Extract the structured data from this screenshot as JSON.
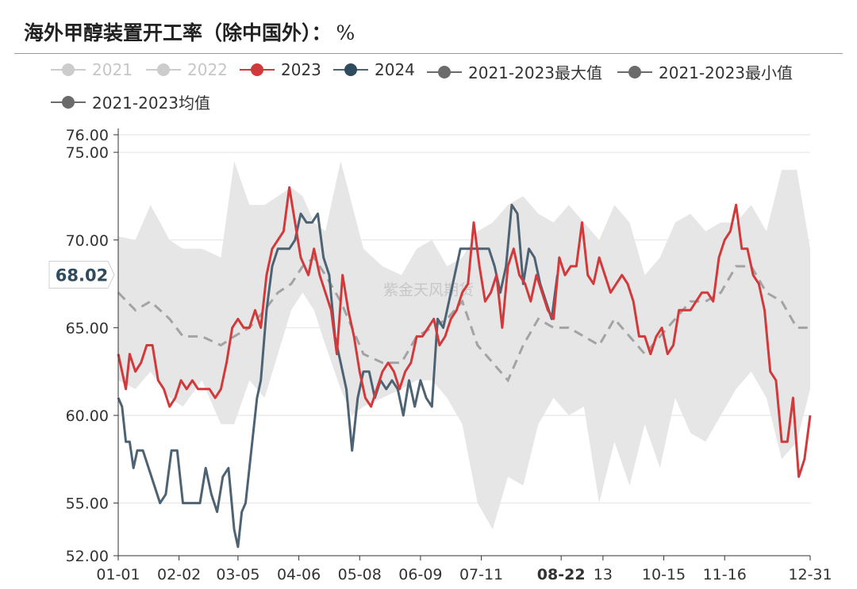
{
  "title": "海外甲醇装置开工率（除中国外）：",
  "title_unit": "%",
  "watermark": "紫金天风期货",
  "colors": {
    "band": "#e6e6e6",
    "mean": "#a3a3a3",
    "s2023": "#d2393b",
    "s2024": "#4d6373",
    "legend_off": "#cccccc",
    "legend_band": "#6b6b6b",
    "grid": "#e2e2e2",
    "axis": "#333333"
  },
  "legend": [
    {
      "label": "2021",
      "state": "off"
    },
    {
      "label": "2022",
      "state": "off"
    },
    {
      "label": "2023",
      "state": "on"
    },
    {
      "label": "2024",
      "state": "on"
    },
    {
      "label": "2021-2023最大值",
      "state": "on"
    },
    {
      "label": "2021-2023最小值",
      "state": "on"
    },
    {
      "label": "2021-2023均值",
      "state": "on"
    }
  ],
  "chart_data": {
    "type": "line",
    "x_unit": "day-of-year (MM-DD)",
    "x_ticks": [
      "01-01",
      "02-02",
      "03-05",
      "04-06",
      "05-08",
      "06-09",
      "07-11",
      "08-22",
      "13",
      "10-15",
      "11-16",
      "12-31"
    ],
    "x_tick_days": [
      1,
      33,
      64,
      96,
      128,
      160,
      192,
      234,
      256,
      288,
      320,
      365
    ],
    "highlight_x": "08-22",
    "y_ticks": [
      52,
      55,
      60,
      65,
      70,
      75,
      76
    ],
    "ylim": [
      52,
      76
    ],
    "pointer_value": "68.02",
    "pointer_y": 68.02,
    "grid": true,
    "series": [
      {
        "name": "2021-2023最大值",
        "role": "band-upper",
        "x": [
          1,
          10,
          18,
          28,
          35,
          45,
          55,
          62,
          70,
          78,
          85,
          92,
          98,
          104,
          110,
          118,
          124,
          130,
          140,
          150,
          158,
          166,
          174,
          182,
          190,
          198,
          206,
          214,
          222,
          230,
          238,
          246,
          254,
          262,
          270,
          278,
          286,
          294,
          302,
          310,
          318,
          326,
          334,
          342,
          350,
          358,
          365
        ],
        "y": [
          70.2,
          70.0,
          72.0,
          70.0,
          69.5,
          69.5,
          69.0,
          74.5,
          72.0,
          72.0,
          72.5,
          73.0,
          72.5,
          71.0,
          70.5,
          74.5,
          72.0,
          69.5,
          68.5,
          68.0,
          69.5,
          70.0,
          68.5,
          69.0,
          70.5,
          71.0,
          72.0,
          72.5,
          71.5,
          71.0,
          72.0,
          71.0,
          70.0,
          72.0,
          71.0,
          68.0,
          69.0,
          71.0,
          71.5,
          70.5,
          71.0,
          71.0,
          72.0,
          70.5,
          74.0,
          74.0,
          69.5
        ]
      },
      {
        "name": "2021-2023最小值",
        "role": "band-lower",
        "x": [
          1,
          10,
          18,
          28,
          35,
          45,
          55,
          62,
          70,
          78,
          85,
          92,
          98,
          104,
          110,
          118,
          124,
          130,
          140,
          150,
          158,
          166,
          174,
          182,
          190,
          198,
          206,
          214,
          222,
          230,
          238,
          246,
          254,
          262,
          270,
          278,
          286,
          294,
          302,
          310,
          318,
          326,
          334,
          342,
          350,
          358,
          365
        ],
        "y": [
          62.0,
          61.5,
          62.5,
          61.0,
          60.5,
          62.0,
          59.5,
          59.5,
          62.0,
          61.0,
          63.5,
          66.0,
          67.0,
          66.0,
          64.0,
          61.5,
          60.0,
          60.5,
          61.0,
          61.5,
          62.0,
          62.0,
          61.0,
          59.5,
          55.0,
          53.5,
          56.5,
          56.0,
          59.5,
          61.0,
          60.0,
          60.5,
          55.0,
          58.5,
          56.0,
          59.5,
          57.0,
          61.0,
          59.0,
          58.5,
          60.0,
          61.5,
          62.5,
          61.0,
          57.5,
          58.5,
          61.5
        ]
      },
      {
        "name": "2021-2023均值",
        "role": "mean",
        "x": [
          1,
          10,
          18,
          28,
          35,
          45,
          55,
          62,
          70,
          78,
          85,
          92,
          98,
          104,
          110,
          118,
          124,
          130,
          140,
          150,
          158,
          166,
          174,
          182,
          190,
          198,
          206,
          214,
          222,
          230,
          238,
          246,
          254,
          262,
          270,
          278,
          286,
          294,
          302,
          310,
          318,
          326,
          334,
          342,
          350,
          358,
          365
        ],
        "y": [
          67.0,
          66.0,
          66.5,
          65.5,
          64.5,
          64.5,
          64.0,
          64.5,
          65.0,
          66.0,
          67.0,
          67.5,
          68.5,
          69.0,
          68.0,
          66.5,
          65.0,
          63.5,
          63.0,
          63.0,
          64.5,
          65.0,
          65.5,
          66.5,
          64.0,
          63.0,
          62.0,
          64.0,
          65.5,
          65.0,
          65.0,
          64.5,
          64.0,
          65.5,
          64.5,
          63.5,
          64.5,
          65.5,
          66.5,
          66.5,
          67.0,
          68.5,
          68.5,
          67.0,
          66.5,
          65.0,
          65.0
        ]
      },
      {
        "name": "2023",
        "role": "line",
        "x": [
          1,
          3,
          5,
          7,
          10,
          13,
          16,
          19,
          22,
          25,
          28,
          31,
          34,
          37,
          40,
          43,
          46,
          49,
          52,
          55,
          58,
          61,
          64,
          67,
          70,
          73,
          76,
          79,
          82,
          85,
          88,
          91,
          94,
          97,
          99,
          101,
          104,
          107,
          110,
          113,
          116,
          119,
          122,
          125,
          128,
          131,
          134,
          137,
          140,
          143,
          146,
          149,
          152,
          155,
          158,
          161,
          164,
          167,
          170,
          173,
          176,
          179,
          182,
          185,
          188,
          191,
          194,
          197,
          200,
          203,
          206,
          209,
          212,
          215,
          218,
          221,
          224,
          227,
          230,
          233,
          236,
          239,
          242,
          245,
          248,
          251,
          254,
          257,
          260,
          263,
          266,
          269,
          272,
          275,
          278,
          281,
          284,
          287,
          290,
          293,
          296,
          299,
          302,
          305,
          308,
          311,
          314,
          317,
          320,
          323,
          326,
          329,
          332,
          335,
          338,
          341,
          344,
          347,
          350,
          353,
          356,
          359,
          362,
          365
        ],
        "y": [
          63.5,
          62.5,
          61.5,
          63.5,
          62.5,
          63.0,
          64.0,
          64.0,
          62.0,
          61.5,
          60.5,
          61.0,
          62.0,
          61.5,
          62.0,
          61.5,
          61.5,
          61.5,
          61.0,
          61.5,
          63.0,
          65.0,
          65.5,
          65.0,
          65.0,
          66.0,
          65.0,
          68.0,
          69.5,
          70.0,
          70.5,
          73.0,
          71.0,
          69.0,
          68.5,
          68.0,
          69.5,
          68.0,
          67.0,
          66.0,
          63.5,
          68.0,
          66.0,
          64.5,
          62.5,
          61.0,
          60.5,
          61.5,
          62.5,
          63.0,
          62.5,
          61.5,
          62.5,
          63.0,
          64.5,
          64.5,
          65.0,
          65.5,
          64.0,
          64.5,
          65.5,
          66.0,
          67.0,
          67.5,
          71.0,
          68.5,
          66.5,
          67.0,
          68.0,
          65.0,
          68.5,
          69.5,
          68.0,
          67.5,
          66.5,
          68.0,
          67.0,
          66.0,
          65.5,
          69.0,
          68.0,
          68.5,
          68.5,
          71.0,
          68.0,
          67.5,
          69.0,
          68.0,
          67.0,
          67.5,
          68.0,
          67.5,
          66.5,
          64.5,
          64.5,
          63.5,
          64.5,
          65.0,
          63.5,
          64.0,
          66.0,
          66.0,
          66.0,
          66.5,
          67.0,
          67.0,
          66.5,
          69.0,
          70.0,
          70.5,
          72.0,
          69.5,
          69.5,
          68.0,
          67.5,
          66.0,
          62.5,
          62.0,
          58.5,
          58.5,
          61.0,
          56.5,
          57.5,
          60.0
        ]
      },
      {
        "name": "2024",
        "role": "line",
        "x": [
          1,
          3,
          5,
          7,
          9,
          11,
          14,
          17,
          20,
          23,
          26,
          29,
          32,
          35,
          38,
          41,
          44,
          47,
          50,
          53,
          56,
          59,
          62,
          64,
          66,
          68,
          70,
          72,
          74,
          76,
          79,
          82,
          85,
          88,
          91,
          94,
          97,
          100,
          103,
          106,
          109,
          112,
          115,
          118,
          121,
          124,
          127,
          130,
          133,
          136,
          139,
          142,
          145,
          148,
          151,
          154,
          157,
          160,
          163,
          166,
          169,
          172,
          175,
          178,
          181,
          184,
          187,
          190,
          193,
          196,
          199,
          202,
          205,
          208,
          211,
          214,
          217,
          220,
          223,
          226,
          229,
          232
        ],
        "y": [
          61.0,
          60.5,
          58.5,
          58.5,
          57.0,
          58.0,
          58.0,
          57.0,
          56.0,
          55.0,
          55.5,
          58.0,
          58.0,
          55.0,
          55.0,
          55.0,
          55.0,
          57.0,
          55.5,
          54.5,
          56.5,
          57.0,
          53.5,
          52.5,
          54.5,
          55.0,
          57.0,
          59.0,
          61.0,
          62.0,
          66.0,
          68.5,
          69.5,
          69.5,
          69.5,
          70.0,
          71.5,
          71.0,
          71.0,
          71.5,
          69.0,
          68.0,
          64.5,
          63.0,
          61.5,
          58.0,
          61.0,
          62.5,
          62.5,
          61.0,
          62.0,
          61.5,
          62.0,
          61.5,
          60.0,
          62.0,
          60.5,
          62.0,
          61.0,
          60.5,
          65.5,
          65.0,
          66.5,
          68.0,
          69.5,
          69.5,
          69.5,
          69.5,
          69.5,
          69.5,
          68.5,
          67.0,
          68.5,
          72.0,
          71.5,
          67.5,
          69.5,
          69.0,
          67.5,
          66.5,
          65.5,
          68.0
        ]
      }
    ]
  }
}
